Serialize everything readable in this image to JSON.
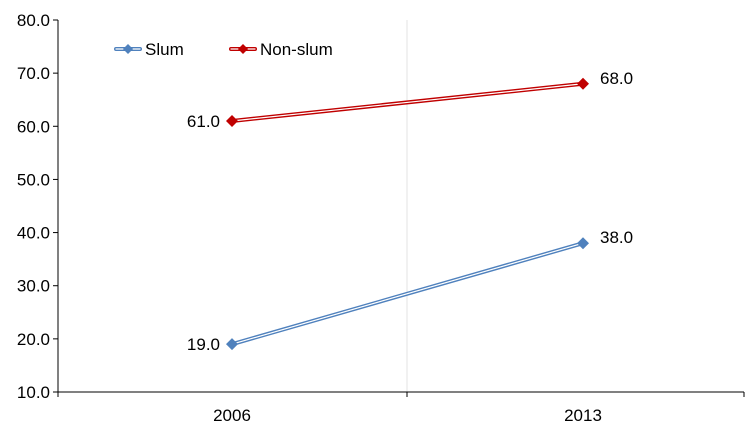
{
  "chart_data": {
    "type": "line",
    "title": "",
    "xlabel": "",
    "ylabel": "",
    "categories": [
      "2006",
      "2013"
    ],
    "ylim": [
      10,
      80
    ],
    "yticks": [
      "10.0",
      "20.0",
      "30.0",
      "40.0",
      "50.0",
      "60.0",
      "70.0",
      "80.0"
    ],
    "grid": "vertical gridlines only",
    "legend_position": "top-left",
    "series": [
      {
        "name": "Slum",
        "values": [
          19.0,
          38.0
        ],
        "labels": [
          "19.0",
          "38.0"
        ],
        "color": "#4f81bd",
        "marker": "diamond"
      },
      {
        "name": "Non-slum",
        "values": [
          61.0,
          68.0
        ],
        "labels": [
          "61.0",
          "68.0"
        ],
        "color": "#c00000",
        "marker": "diamond"
      }
    ]
  }
}
